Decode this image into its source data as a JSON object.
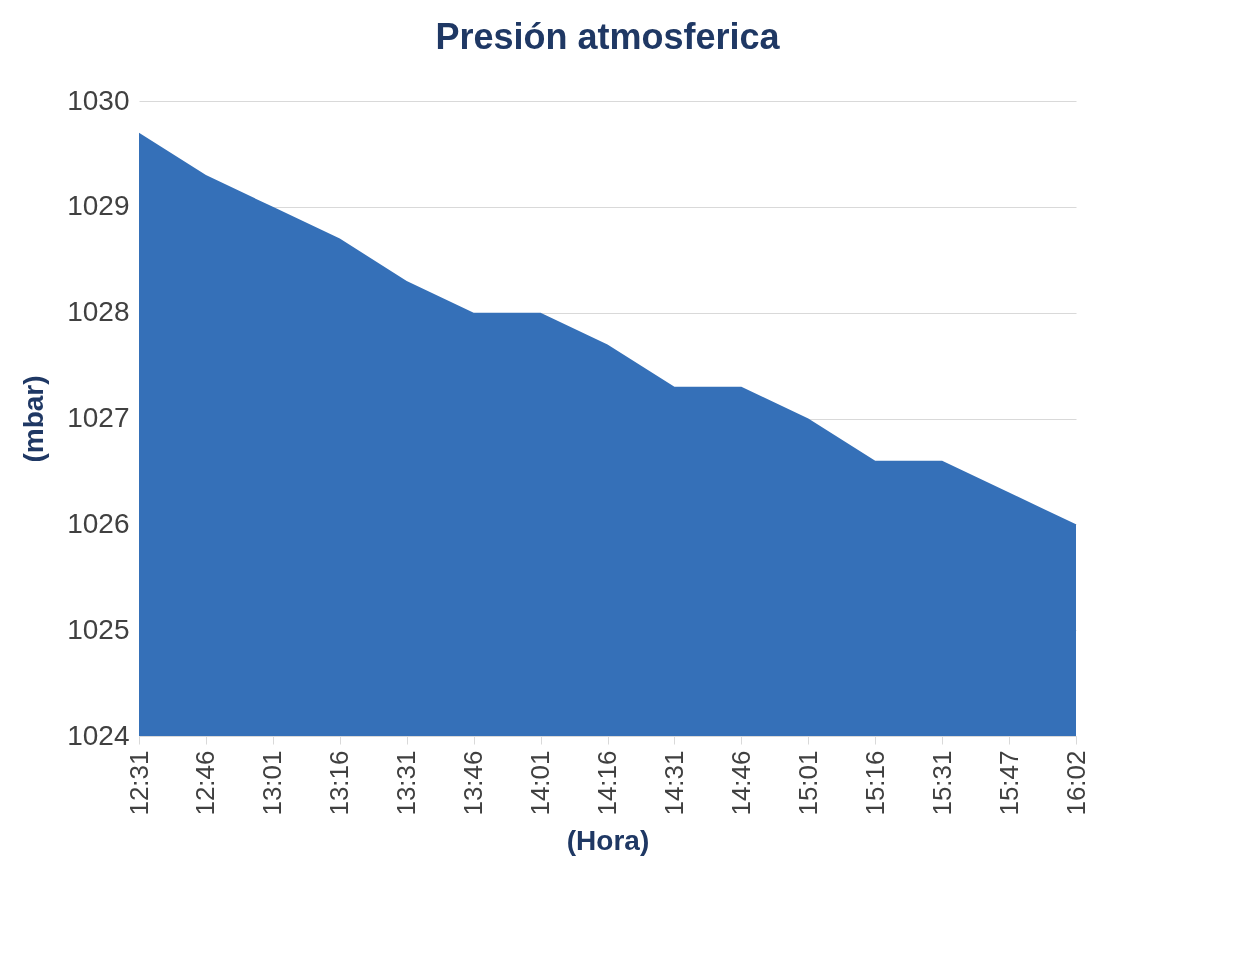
{
  "chart_data": {
    "type": "area",
    "title": "Presión atmosferica",
    "xlabel": "(Hora)",
    "ylabel": "(mbar)",
    "categories": [
      "12:31",
      "12:46",
      "13:01",
      "13:16",
      "13:31",
      "13:46",
      "14:01",
      "14:16",
      "14:31",
      "14:46",
      "15:01",
      "15:16",
      "15:31",
      "15:47",
      "16:02"
    ],
    "series": [
      {
        "color": "#3570b8",
        "values": [
          1029.7,
          1029.3,
          1029.0,
          1028.7,
          1028.3,
          1028.0,
          1028.0,
          1027.7,
          1027.3,
          1027.3,
          1027.0,
          1026.6,
          1026.6,
          1026.3,
          1026.0
        ]
      }
    ],
    "ylim": [
      1024,
      1030
    ],
    "yticks": [
      1024,
      1025,
      1026,
      1027,
      1028,
      1029,
      1030
    ],
    "grid": "y"
  }
}
